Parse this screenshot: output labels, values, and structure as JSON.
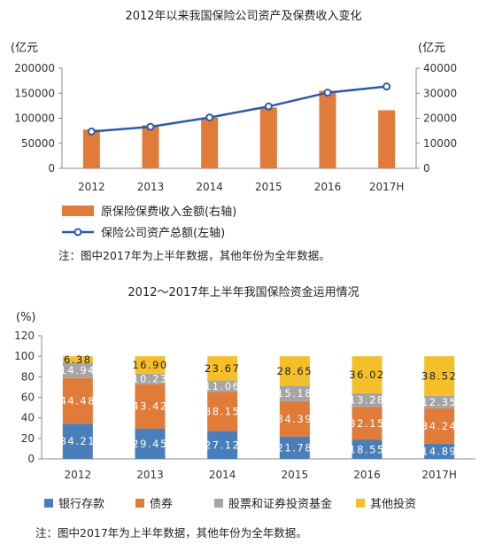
{
  "charts": [
    {
      "title": "2012年以来我国保险公司资产及保费收入变化",
      "left_unit": "(亿元",
      "right_unit": "(亿元",
      "legend": [
        "原保险保费收入金额(右轴)",
        "保险公司资产总额(左轴)"
      ],
      "note": "注：图中2017年为上半年数据，其他年份为全年数据。"
    },
    {
      "title": "2012～2017年上半年我国保险资金运用情况",
      "unit": "(%)",
      "legend": [
        "银行存款",
        "债券",
        "股票和证券投资基金",
        "其他投资"
      ],
      "note": "注：图中2017年为上半年数据，其他年份为全年数据。"
    }
  ],
  "chart_data": [
    {
      "type": "bar+line",
      "title": "2012年以来我国保险公司资产及保费收入变化",
      "categories": [
        "2012",
        "2013",
        "2014",
        "2015",
        "2016",
        "2017H"
      ],
      "left_axis": {
        "label": "(亿元",
        "ylim": [
          0,
          200000
        ],
        "ticks": [
          "0",
          "50000",
          "100000",
          "150000",
          "200000"
        ]
      },
      "right_axis": {
        "label": "(亿元",
        "ylim": [
          0,
          40000
        ],
        "ticks": [
          "0",
          "10000",
          "20000",
          "30000",
          "40000"
        ]
      },
      "series": [
        {
          "name": "原保险保费收入金额(右轴)",
          "type": "bar",
          "axis": "right",
          "values": [
            15500,
            17200,
            20200,
            24300,
            31000,
            23200
          ]
        },
        {
          "name": "保险公司资产总额(左轴)",
          "type": "line",
          "axis": "left",
          "values": [
            73500,
            82900,
            101600,
            123600,
            151200,
            163400
          ]
        }
      ],
      "colors": {
        "bar": "#e07b39",
        "line": "#2f5aa8",
        "marker_fill": "#ffffff"
      },
      "grid": false,
      "legend_position": "bottom"
    },
    {
      "type": "stacked-bar",
      "title": "2012～2017年上半年我国保险资金运用情况",
      "categories": [
        "2012",
        "2013",
        "2014",
        "2015",
        "2016",
        "2017H"
      ],
      "ylabel": "(%)",
      "ylim": [
        0,
        120
      ],
      "ticks": [
        "0",
        "20",
        "40",
        "60",
        "80",
        "100",
        "120"
      ],
      "series": [
        {
          "name": "银行存款",
          "values": [
            34.21,
            29.45,
            27.12,
            21.78,
            18.55,
            14.89
          ],
          "labels": [
            "34.21",
            "29.45",
            "27.12",
            "21.78",
            "18.55",
            "14.89"
          ],
          "color": "#4a7ebb"
        },
        {
          "name": "债券",
          "values": [
            44.48,
            43.42,
            38.15,
            34.39,
            32.15,
            34.24
          ],
          "labels": [
            "44.48",
            "43.42",
            "38.15",
            "34.39",
            "32.15",
            "34.24"
          ],
          "color": "#e07b39"
        },
        {
          "name": "股票和证券投资基金",
          "values": [
            14.94,
            10.23,
            11.06,
            15.18,
            13.28,
            12.35
          ],
          "labels": [
            "14.94",
            "10.23",
            "11.06",
            "15.18",
            "13.28",
            "12.35"
          ],
          "color": "#a5a5a5"
        },
        {
          "name": "其他投资",
          "values": [
            6.38,
            16.9,
            23.67,
            28.65,
            36.02,
            38.52
          ],
          "labels": [
            "6.38",
            "16.90",
            "23.67",
            "28.65",
            "36.02",
            "38.52"
          ],
          "color": "#f5bf2a"
        }
      ],
      "grid": false,
      "legend_position": "bottom"
    }
  ]
}
